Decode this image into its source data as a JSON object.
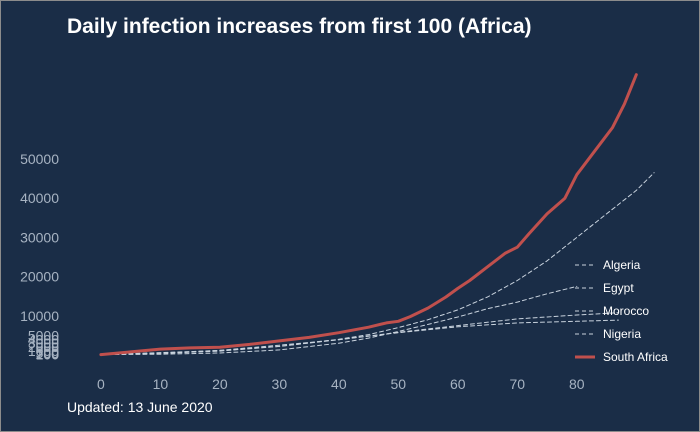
{
  "title": "Daily infection increases from first 100 (Africa)",
  "footer": "Updated: 13 June 2020",
  "colors": {
    "background": "#1a2d47",
    "south_africa": "#c0504d",
    "other_series": "#c9d3de",
    "tick_text": "#a7b3c2"
  },
  "chart_data": {
    "type": "line",
    "title": "Daily infection increases from first 100 (Africa)",
    "xlabel": "",
    "ylabel": "",
    "xlim": [
      -2,
      95
    ],
    "ylim": [
      0,
      75000
    ],
    "x_ticks": [
      0,
      10,
      20,
      30,
      40,
      50,
      60,
      70,
      80
    ],
    "y_ticks": [
      100,
      200,
      500,
      1000,
      2000,
      3000,
      4000,
      5000,
      10000,
      20000,
      30000,
      40000,
      50000
    ],
    "grid": false,
    "legend": "right",
    "series": [
      {
        "name": "Algeria",
        "style": "dashed",
        "x": [
          0,
          10,
          20,
          30,
          40,
          50,
          60,
          70,
          80,
          87
        ],
        "y": [
          100,
          500,
          1200,
          2500,
          3900,
          5800,
          7500,
          9200,
          10200,
          10800
        ]
      },
      {
        "name": "Egypt",
        "style": "dashed",
        "x": [
          0,
          10,
          20,
          30,
          40,
          45,
          50,
          55,
          60,
          65,
          70,
          75,
          80,
          85,
          90,
          93
        ],
        "y": [
          100,
          400,
          1000,
          2200,
          4000,
          5200,
          7000,
          9000,
          11500,
          14800,
          19000,
          24000,
          30000,
          36000,
          42000,
          46500
        ]
      },
      {
        "name": "Morocco",
        "style": "dashed",
        "x": [
          0,
          10,
          20,
          30,
          40,
          50,
          60,
          70,
          80,
          87
        ],
        "y": [
          100,
          600,
          1100,
          2200,
          3900,
          5700,
          7200,
          8200,
          8600,
          8900
        ]
      },
      {
        "name": "Nigeria",
        "style": "dashed",
        "x": [
          0,
          10,
          20,
          30,
          40,
          45,
          50,
          55,
          60,
          65,
          70,
          75,
          80
        ],
        "y": [
          100,
          200,
          500,
          1300,
          3000,
          4300,
          6000,
          7800,
          9700,
          11800,
          13500,
          15600,
          17500
        ]
      },
      {
        "name": "South Africa",
        "style": "solid",
        "x": [
          0,
          5,
          10,
          15,
          20,
          25,
          30,
          35,
          40,
          45,
          48,
          50,
          52,
          55,
          58,
          60,
          62,
          65,
          68,
          70,
          72,
          75,
          78,
          80,
          83,
          86,
          88,
          90
        ],
        "y": [
          100,
          800,
          1500,
          1800,
          2000,
          2700,
          3600,
          4500,
          5700,
          7100,
          8200,
          8600,
          9800,
          12000,
          14800,
          17000,
          19000,
          22500,
          26000,
          27500,
          31000,
          36000,
          40000,
          46000,
          52000,
          58000,
          64000,
          71500
        ]
      }
    ]
  }
}
